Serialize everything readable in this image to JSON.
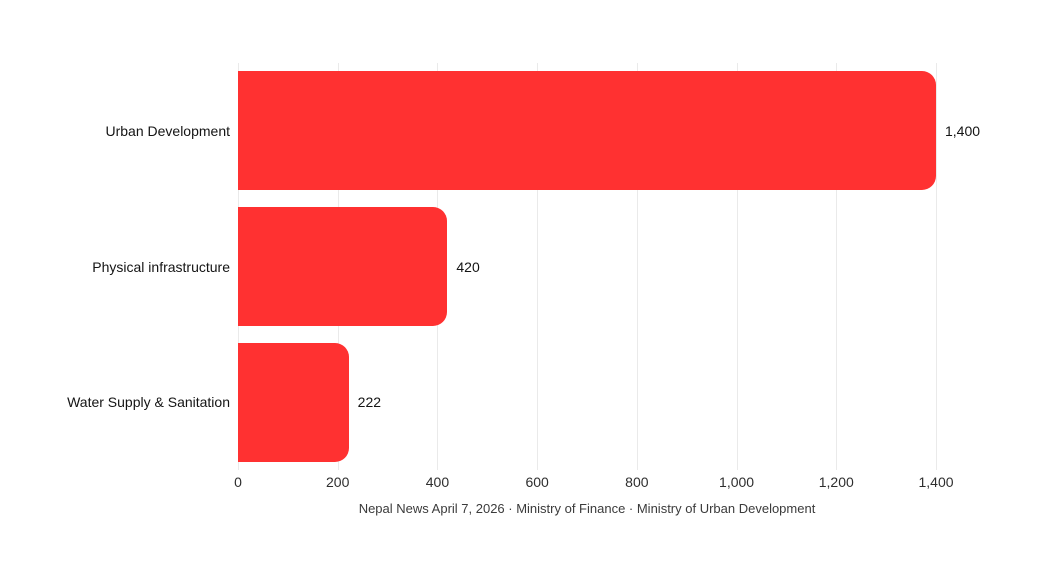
{
  "chart_data": {
    "type": "bar",
    "orientation": "horizontal",
    "title": "",
    "xlabel": "",
    "ylabel": "",
    "categories": [
      "Urban Development",
      "Physical infrastructure",
      "Water Supply & Sanitation"
    ],
    "values": [
      1400,
      420,
      222
    ],
    "value_labels": [
      "1,400",
      "420",
      "222"
    ],
    "xlim": [
      0,
      1400
    ],
    "x_ticks": [
      {
        "value": 0,
        "label": "0"
      },
      {
        "value": 200,
        "label": "200"
      },
      {
        "value": 400,
        "label": "400"
      },
      {
        "value": 600,
        "label": "600"
      },
      {
        "value": 800,
        "label": "800"
      },
      {
        "value": 1000,
        "label": "1,000"
      },
      {
        "value": 1200,
        "label": "1,200"
      },
      {
        "value": 1400,
        "label": "1,400"
      }
    ],
    "grid": true,
    "legend": "none",
    "bar_color": "#ff3131",
    "gridline_color": "#eaeaea",
    "footer": "Nepal News April 7, 2026 · Ministry of Finance · Ministry of Urban Development"
  }
}
